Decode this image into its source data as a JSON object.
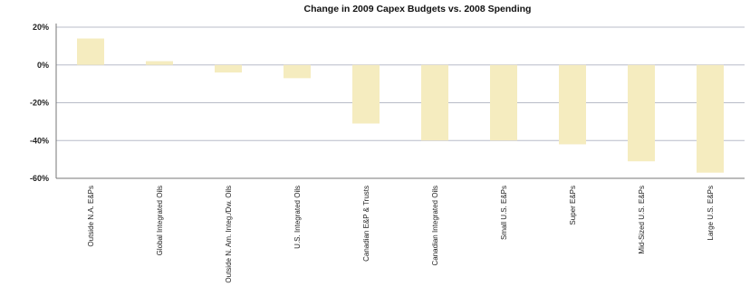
{
  "chart_data": {
    "type": "bar",
    "title": "Change in 2009 Capex Budgets vs. 2008 Spending",
    "xlabel": "",
    "ylabel": "",
    "categories": [
      "Outside N.A. E&Ps",
      "Global Integrated Oils",
      "Outside N. Am. Integ./Dw. Oils",
      "U.S. Integrated Oils",
      "Canadian E&P & Trusts",
      "Canadian Integrated Oils",
      "Small U.S. E&Ps",
      "Super E&Ps",
      "Mid-Sized U.S. E&Ps",
      "Large U.S. E&Ps"
    ],
    "values": [
      14,
      2,
      -4,
      -7,
      -31,
      -40,
      -40,
      -42,
      -51,
      -57
    ],
    "ylim": [
      -60,
      20
    ],
    "yticks": [
      20,
      0,
      -20,
      -40,
      -60
    ],
    "ytick_labels": [
      "20%",
      "0%",
      "-20%",
      "-40%",
      "-60%"
    ],
    "grid": true,
    "legend": "none",
    "colors": {
      "bar": "#f5ecbf",
      "grid": "#b8bcc8",
      "axis": "#777777"
    }
  }
}
